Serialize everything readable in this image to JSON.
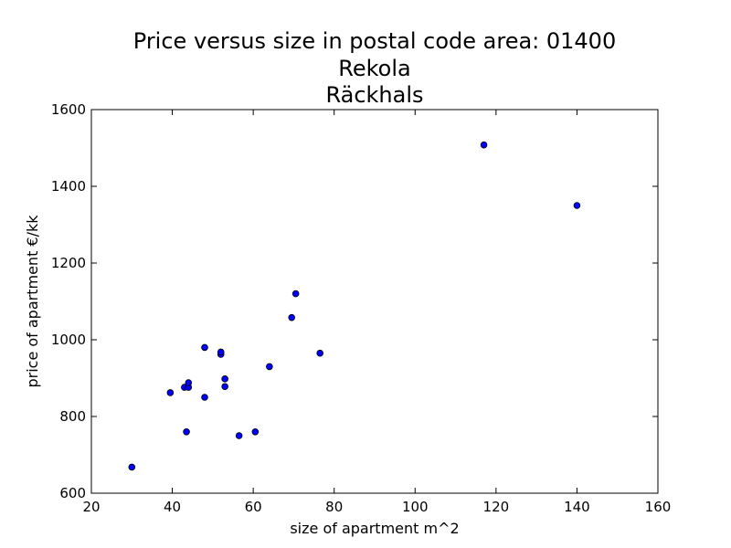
{
  "chart_data": {
    "type": "scatter",
    "title": [
      "Price versus size in postal code area: 01400",
      "Rekola",
      "Räckhals"
    ],
    "xlabel": "size of apartment m^2",
    "ylabel": "price of apartment €/kk",
    "xlim": [
      20,
      160
    ],
    "ylim": [
      600,
      1600
    ],
    "xticks": [
      20,
      40,
      60,
      80,
      100,
      120,
      140,
      160
    ],
    "yticks": [
      600,
      800,
      1000,
      1200,
      1400,
      1600
    ],
    "grid": false,
    "marker_color": "#0000ff",
    "marker_edge_color": "#000000",
    "points": [
      {
        "x": 30,
        "y": 668
      },
      {
        "x": 39.5,
        "y": 862
      },
      {
        "x": 43,
        "y": 876
      },
      {
        "x": 43.5,
        "y": 760
      },
      {
        "x": 44,
        "y": 876
      },
      {
        "x": 44,
        "y": 888
      },
      {
        "x": 48,
        "y": 850
      },
      {
        "x": 48,
        "y": 980
      },
      {
        "x": 52,
        "y": 962
      },
      {
        "x": 52,
        "y": 968
      },
      {
        "x": 53,
        "y": 878
      },
      {
        "x": 53,
        "y": 898
      },
      {
        "x": 56.5,
        "y": 750
      },
      {
        "x": 60.5,
        "y": 760
      },
      {
        "x": 64,
        "y": 930
      },
      {
        "x": 69.5,
        "y": 1058
      },
      {
        "x": 70.5,
        "y": 1120
      },
      {
        "x": 76.5,
        "y": 965
      },
      {
        "x": 117,
        "y": 1508
      },
      {
        "x": 140,
        "y": 1350
      }
    ]
  }
}
